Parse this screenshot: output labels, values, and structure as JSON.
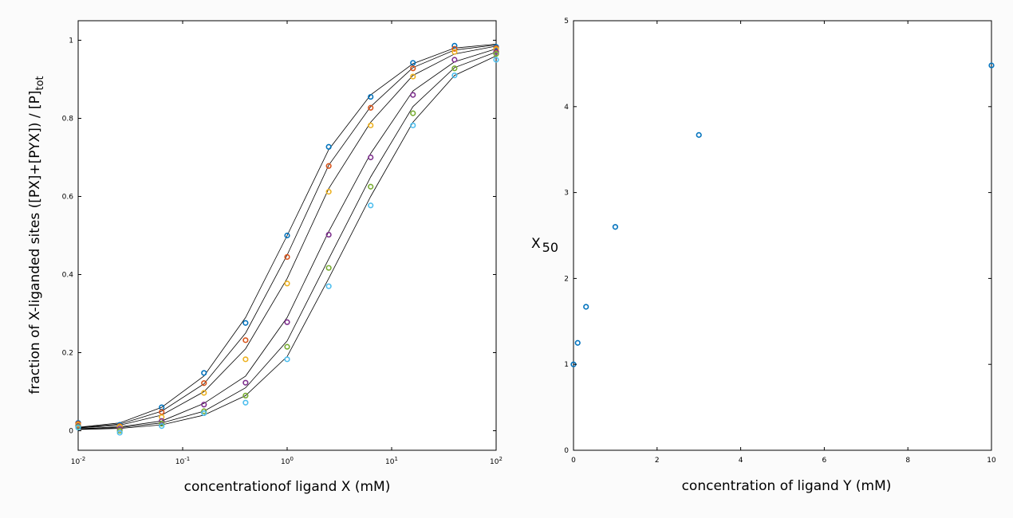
{
  "chart_data": [
    {
      "type": "scatter",
      "xscale": "log",
      "xlabel": "concentrationof ligand X (mM)",
      "ylabel": "fraction of X-liganded sites   ([PX]+[PYX]) / [P]",
      "ylabel_sub": "tot",
      "xlim": [
        0.01,
        100
      ],
      "ylim": [
        -0.05,
        1.05
      ],
      "xticks": [
        {
          "value": 0.01,
          "base": "10",
          "exp": "-2"
        },
        {
          "value": 0.1,
          "base": "10",
          "exp": "-1"
        },
        {
          "value": 1,
          "base": "10",
          "exp": "0"
        },
        {
          "value": 10,
          "base": "10",
          "exp": "1"
        },
        {
          "value": 100,
          "base": "10",
          "exp": "2"
        }
      ],
      "yticks": [
        "0",
        "0.2",
        "0.4",
        "0.6",
        "0.8",
        "1"
      ],
      "ytick_values": [
        0,
        0.2,
        0.4,
        0.6,
        0.8,
        1
      ],
      "grid": false,
      "x": [
        0.01,
        0.025,
        0.063,
        0.16,
        0.4,
        1.0,
        2.5,
        6.3,
        16,
        40,
        100
      ],
      "series": [
        {
          "color": "#0072bd",
          "points": [
            0.02,
            0.015,
            0.06,
            0.148,
            0.276,
            0.5,
            0.727,
            0.855,
            0.942,
            0.986,
            0.983
          ],
          "fit": [
            0.009,
            0.02,
            0.06,
            0.14,
            0.29,
            0.5,
            0.72,
            0.86,
            0.94,
            0.98,
            0.99
          ]
        },
        {
          "color": "#d95319",
          "points": [
            0.018,
            0.012,
            0.048,
            0.122,
            0.232,
            0.445,
            0.678,
            0.827,
            0.928,
            0.978,
            0.98
          ],
          "fit": [
            0.008,
            0.017,
            0.05,
            0.12,
            0.25,
            0.45,
            0.68,
            0.83,
            0.93,
            0.975,
            0.988
          ]
        },
        {
          "color": "#edb120",
          "points": [
            0.015,
            0.01,
            0.035,
            0.097,
            0.183,
            0.377,
            0.612,
            0.782,
            0.907,
            0.97,
            0.977
          ],
          "fit": [
            0.007,
            0.014,
            0.04,
            0.1,
            0.21,
            0.39,
            0.62,
            0.79,
            0.91,
            0.965,
            0.985
          ]
        },
        {
          "color": "#7e2f8e",
          "points": [
            0.012,
            0.005,
            0.025,
            0.067,
            0.123,
            0.278,
            0.502,
            0.7,
            0.86,
            0.95,
            0.97
          ],
          "fit": [
            0.005,
            0.01,
            0.025,
            0.07,
            0.14,
            0.29,
            0.51,
            0.71,
            0.87,
            0.945,
            0.978
          ]
        },
        {
          "color": "#77ac30",
          "points": [
            0.01,
            0.0,
            0.018,
            0.05,
            0.09,
            0.215,
            0.417,
            0.625,
            0.813,
            0.928,
            0.965
          ],
          "fit": [
            0.004,
            0.008,
            0.02,
            0.05,
            0.11,
            0.23,
            0.44,
            0.65,
            0.83,
            0.93,
            0.97
          ]
        },
        {
          "color": "#4dbeee",
          "points": [
            0.008,
            -0.005,
            0.012,
            0.045,
            0.072,
            0.183,
            0.37,
            0.577,
            0.782,
            0.91,
            0.95
          ],
          "fit": [
            0.003,
            0.006,
            0.015,
            0.04,
            0.09,
            0.19,
            0.39,
            0.6,
            0.79,
            0.91,
            0.96
          ]
        }
      ]
    },
    {
      "type": "scatter",
      "xlabel": "concentration of ligand Y (mM)",
      "ylabel": "X",
      "ylabel_sub": "50",
      "xlim": [
        0,
        10
      ],
      "ylim": [
        0,
        5
      ],
      "xticks": [
        "0",
        "2",
        "4",
        "6",
        "8",
        "10"
      ],
      "xtick_values": [
        0,
        2,
        4,
        6,
        8,
        10
      ],
      "yticks": [
        "0",
        "1",
        "2",
        "3",
        "4",
        "5"
      ],
      "ytick_values": [
        0,
        1,
        2,
        3,
        4,
        5
      ],
      "grid": false,
      "color": "#0072bd",
      "x": [
        0,
        0.1,
        0.3,
        1,
        3,
        10
      ],
      "y": [
        1.0,
        1.25,
        1.67,
        2.6,
        3.67,
        4.48
      ]
    }
  ]
}
